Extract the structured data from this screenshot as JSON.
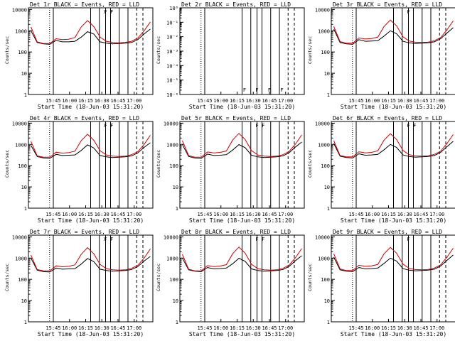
{
  "chart_data": [
    {
      "type": "line",
      "title": "Det 1r BLACK = Events, RED = LLD",
      "xlabel": "Start Time (18-Jun-03 15:31:20)",
      "ylabel": "Counts/sec",
      "yscale": "log",
      "xlim": [
        "15:31",
        "17:09"
      ],
      "ylim": [
        1,
        12000
      ],
      "ytick_labels": [
        "1",
        "10",
        "100",
        "1000",
        "10000"
      ],
      "xtick_labels": [
        "15:45",
        "16:00",
        "16:15",
        "16:30",
        "16:45",
        "17:00"
      ],
      "series": [
        {
          "name": "Events",
          "color": "#000000",
          "values": [
            1000,
            280,
            240,
            230,
            350,
            300,
            300,
            320,
            500,
            900,
            700,
            300,
            260,
            240,
            250,
            260,
            280,
            380,
            700,
            1200
          ]
        },
        {
          "name": "LLD",
          "color": "#d00000",
          "values": [
            1500,
            300,
            250,
            250,
            420,
            380,
            400,
            480,
            1500,
            3000,
            1600,
            500,
            320,
            280,
            270,
            280,
            320,
            450,
            1000,
            2600
          ]
        }
      ],
      "markers": [
        "F",
        "F"
      ]
    },
    {
      "type": "line",
      "title": "Det 2r BLACK = Events, RED = LLD",
      "xlabel": "Start Time (18-Jun-03 15:31:20)",
      "ylabel": "Counts/sec",
      "yscale": "log",
      "ylim": [
        1e-06,
        1
      ],
      "ytick_labels": [
        "10⁻⁶",
        "10⁻⁵",
        "10⁻⁴",
        "10⁻³",
        "10⁻²",
        "10⁻¹",
        "10⁰"
      ],
      "xtick_labels": [
        "15:45",
        "16:00",
        "16:15",
        "16:30",
        "16:45",
        "17:00"
      ],
      "series": [],
      "markers": [
        "F",
        "F",
        "F",
        "F"
      ]
    },
    {
      "type": "line",
      "title": "Det 3r BLACK = Events, RED = LLD",
      "xlabel": "Start Time (18-Jun-03 15:31:20)",
      "ylabel": "Counts/sec",
      "yscale": "log",
      "ylim": [
        1,
        12000
      ],
      "ytick_labels": [
        "1",
        "10",
        "100",
        "1000",
        "10000"
      ],
      "xtick_labels": [
        "15:45",
        "16:00",
        "16:15",
        "16:30",
        "16:45",
        "17:00"
      ],
      "series": [
        {
          "name": "Events",
          "color": "#000000",
          "values": [
            1200,
            280,
            240,
            230,
            380,
            320,
            330,
            340,
            560,
            1000,
            720,
            320,
            270,
            250,
            260,
            270,
            300,
            420,
            780,
            1400
          ]
        },
        {
          "name": "LLD",
          "color": "#d00000",
          "values": [
            1600,
            310,
            260,
            260,
            460,
            410,
            430,
            500,
            1600,
            3200,
            1700,
            520,
            330,
            290,
            280,
            290,
            340,
            480,
            1100,
            2900
          ]
        }
      ],
      "markers": [
        "F"
      ]
    },
    {
      "type": "line",
      "title": "Det 4r BLACK = Events, RED = LLD",
      "xlabel": "Start Time (18-Jun-03 15:31:20)",
      "ylabel": "Counts/sec",
      "yscale": "log",
      "ylim": [
        1,
        12000
      ],
      "ytick_labels": [
        "1",
        "10",
        "100",
        "1000",
        "10000"
      ],
      "xtick_labels": [
        "15:45",
        "16:00",
        "16:15",
        "16:30",
        "16:45",
        "17:00"
      ],
      "series": [
        {
          "name": "Events",
          "color": "#000000",
          "values": [
            900,
            270,
            230,
            220,
            340,
            300,
            310,
            320,
            520,
            950,
            680,
            300,
            260,
            240,
            250,
            260,
            290,
            400,
            720,
            1200
          ]
        },
        {
          "name": "LLD",
          "color": "#d00000",
          "values": [
            1400,
            290,
            250,
            250,
            430,
            390,
            410,
            480,
            1500,
            3000,
            1600,
            500,
            320,
            280,
            270,
            280,
            330,
            460,
            1000,
            2700
          ]
        }
      ],
      "markers": [
        "F",
        "F"
      ]
    },
    {
      "type": "line",
      "title": "Det 5r BLACK = Events, RED = LLD",
      "xlabel": "Start Time (18-Jun-03 15:31:20)",
      "ylabel": "Counts/sec",
      "yscale": "log",
      "ylim": [
        1,
        12000
      ],
      "ytick_labels": [
        "1",
        "10",
        "100",
        "1000",
        "10000"
      ],
      "xtick_labels": [
        "15:45",
        "16:00",
        "16:15",
        "16:30",
        "16:45",
        "17:00"
      ],
      "series": [
        {
          "name": "Events",
          "color": "#000000",
          "values": [
            1000,
            270,
            230,
            220,
            350,
            300,
            310,
            330,
            540,
            980,
            700,
            310,
            260,
            240,
            250,
            260,
            290,
            410,
            760,
            1300
          ]
        },
        {
          "name": "LLD",
          "color": "#d00000",
          "values": [
            1500,
            300,
            250,
            250,
            440,
            400,
            420,
            490,
            1600,
            3300,
            1700,
            510,
            320,
            280,
            270,
            280,
            330,
            470,
            1050,
            2800
          ]
        }
      ],
      "markers": [
        "F",
        "F"
      ]
    },
    {
      "type": "line",
      "title": "Det 6r BLACK = Events, RED = LLD",
      "xlabel": "Start Time (18-Jun-03 15:31:20)",
      "ylabel": "Counts/sec",
      "yscale": "log",
      "ylim": [
        1,
        12000
      ],
      "ytick_labels": [
        "1",
        "10",
        "100",
        "1000",
        "10000"
      ],
      "xtick_labels": [
        "15:45",
        "16:00",
        "16:15",
        "16:30",
        "16:45",
        "17:00"
      ],
      "series": [
        {
          "name": "Events",
          "color": "#000000",
          "values": [
            1100,
            280,
            240,
            230,
            360,
            310,
            320,
            340,
            560,
            1000,
            720,
            320,
            270,
            250,
            260,
            270,
            300,
            420,
            780,
            1400
          ]
        },
        {
          "name": "LLD",
          "color": "#d00000",
          "values": [
            1500,
            300,
            260,
            260,
            450,
            400,
            420,
            500,
            1600,
            3200,
            1700,
            520,
            330,
            290,
            280,
            290,
            340,
            480,
            1100,
            2900
          ]
        }
      ],
      "markers": [
        "F",
        "F"
      ]
    },
    {
      "type": "line",
      "title": "Det 7r BLACK = Events, RED = LLD",
      "xlabel": "Start Time (18-Jun-03 15:31:20)",
      "ylabel": "Counts/sec",
      "yscale": "log",
      "ylim": [
        1,
        12000
      ],
      "ytick_labels": [
        "1",
        "10",
        "100",
        "1000",
        "10000"
      ],
      "xtick_labels": [
        "15:45",
        "16:00",
        "16:15",
        "16:30",
        "16:45",
        "17:00"
      ],
      "series": [
        {
          "name": "Events",
          "color": "#000000",
          "values": [
            1000,
            270,
            230,
            220,
            340,
            300,
            310,
            320,
            520,
            950,
            680,
            300,
            260,
            240,
            250,
            260,
            290,
            400,
            720,
            1200
          ]
        },
        {
          "name": "LLD",
          "color": "#d00000",
          "values": [
            1400,
            290,
            250,
            250,
            430,
            390,
            410,
            480,
            1500,
            3100,
            1600,
            500,
            320,
            280,
            270,
            280,
            330,
            460,
            1000,
            2700
          ]
        }
      ],
      "markers": [
        "F",
        "F"
      ]
    },
    {
      "type": "line",
      "title": "Det 8r BLACK = Events, RED = LLD",
      "xlabel": "Start Time (18-Jun-03 15:31:20)",
      "ylabel": "Counts/sec",
      "yscale": "log",
      "ylim": [
        1,
        12000
      ],
      "ytick_labels": [
        "1",
        "10",
        "100",
        "1000",
        "10000"
      ],
      "xtick_labels": [
        "15:45",
        "16:00",
        "16:15",
        "16:30",
        "16:45",
        "17:00"
      ],
      "series": [
        {
          "name": "Events",
          "color": "#000000",
          "values": [
            1000,
            280,
            240,
            230,
            360,
            310,
            320,
            340,
            540,
            980,
            700,
            310,
            260,
            240,
            250,
            260,
            290,
            410,
            760,
            1300
          ]
        },
        {
          "name": "LLD",
          "color": "#d00000",
          "values": [
            1500,
            300,
            250,
            250,
            440,
            400,
            420,
            490,
            1600,
            3300,
            1700,
            510,
            320,
            280,
            270,
            280,
            330,
            470,
            1050,
            2800
          ]
        }
      ],
      "markers": [
        "F",
        "F"
      ]
    },
    {
      "type": "line",
      "title": "Det 9r BLACK = Events, RED = LLD",
      "xlabel": "Start Time (18-Jun-03 15:31:20)",
      "ylabel": "Counts/sec",
      "yscale": "log",
      "ylim": [
        1,
        12000
      ],
      "ytick_labels": [
        "1",
        "10",
        "100",
        "1000",
        "10000"
      ],
      "xtick_labels": [
        "15:45",
        "16:00",
        "16:15",
        "16:30",
        "16:45",
        "17:00"
      ],
      "series": [
        {
          "name": "Events",
          "color": "#000000",
          "values": [
            1100,
            280,
            240,
            230,
            360,
            310,
            320,
            340,
            560,
            1000,
            720,
            320,
            270,
            250,
            260,
            270,
            300,
            420,
            780,
            1400
          ]
        },
        {
          "name": "LLD",
          "color": "#d00000",
          "values": [
            1600,
            310,
            260,
            260,
            460,
            410,
            430,
            500,
            1600,
            3200,
            1700,
            520,
            330,
            290,
            280,
            290,
            340,
            480,
            1100,
            2900
          ]
        }
      ],
      "markers": [
        "F"
      ]
    }
  ]
}
